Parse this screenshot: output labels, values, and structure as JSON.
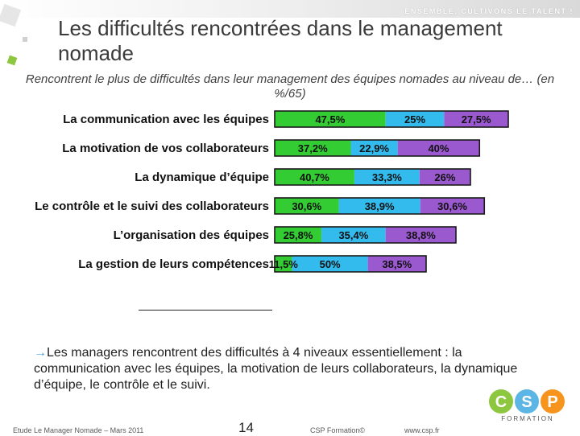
{
  "header": {
    "slogan": "ENSEMBLE, CULTIVONS LE TALENT !"
  },
  "title": "Les difficultés rencontrées dans le management nomade",
  "subtitle": "Rencontrent le plus de difficultés dans leur management des équipes nomades  au niveau de… (en %/65)",
  "chart_data": {
    "type": "bar",
    "orientation": "horizontal",
    "stacked": true,
    "categories": [
      "La communication avec les équipes",
      "La motivation de vos collaborateurs",
      "La dynamique d’équipe",
      "Le contrôle et le suivi des collaborateurs",
      "L’organisation des équipes",
      "La gestion de leurs compétences"
    ],
    "series": [
      {
        "name": "green",
        "color": "#33cc33",
        "values": [
          47.5,
          37.2,
          40.7,
          30.6,
          25.8,
          11.5
        ],
        "labels": [
          "47,5%",
          "37,2%",
          "40,7%",
          "30,6%",
          "25,8%",
          "11,5%"
        ]
      },
      {
        "name": "blue",
        "color": "#33bbee",
        "values": [
          25,
          22.9,
          33.3,
          38.9,
          35.4,
          50
        ],
        "labels": [
          "25%",
          "22,9%",
          "33,3%",
          "38,9%",
          "35,4%",
          "50%"
        ]
      },
      {
        "name": "purple",
        "color": "#9b59d0",
        "values": [
          27.5,
          40,
          26,
          30.6,
          38.8,
          38.5
        ],
        "labels": [
          "27,5%",
          "40%",
          "26%",
          "30,6%",
          "38,8%",
          "38,5%"
        ]
      }
    ],
    "totals": [
      100,
      100.1,
      100,
      100.1,
      100,
      100
    ],
    "title": "",
    "xlabel": "",
    "ylabel": ""
  },
  "summary": {
    "arrow": "→",
    "text": "Les managers rencontrent des difficultés à 4 niveaux essentiellement : la communication avec les équipes, la motivation de leurs collaborateurs, la dynamique d’équipe,  le contrôle et le suivi."
  },
  "footer": {
    "study": "Etude Le Manager Nomade – Mars 2011",
    "page": "14",
    "copyright": "CSP Formation©",
    "url": "www.csp.fr"
  },
  "logo": {
    "letters": [
      "C",
      "S",
      "P"
    ],
    "word": "FORMATION",
    "colors": [
      "#8dc63f",
      "#5bb5e5",
      "#f7941d"
    ]
  }
}
